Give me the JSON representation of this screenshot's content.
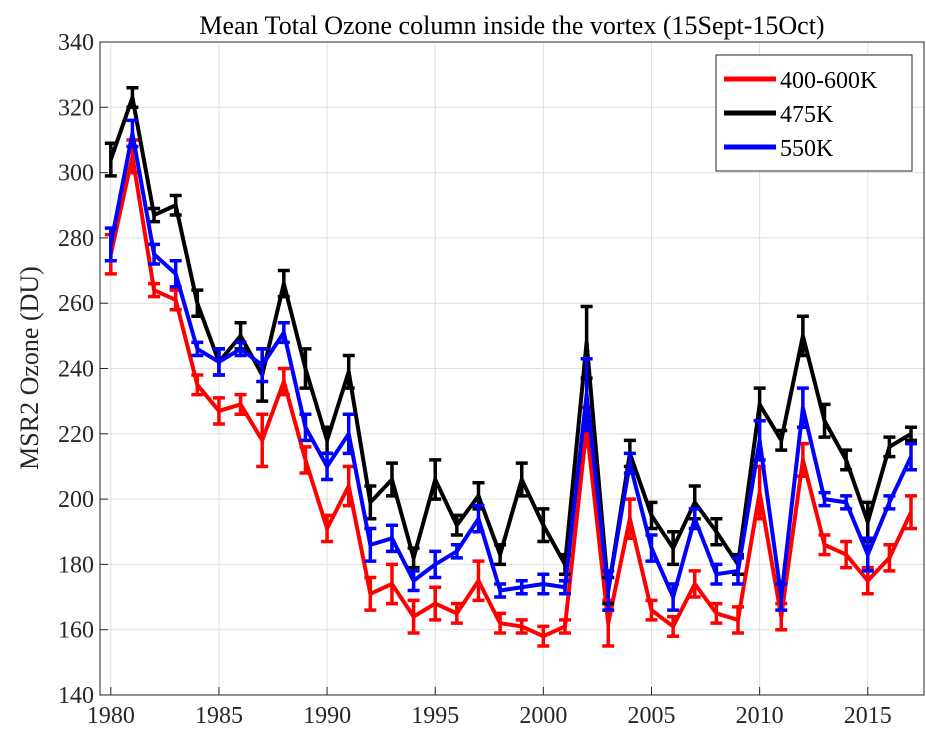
{
  "chart_data": {
    "type": "line_errorbar",
    "title": "Mean Total Ozone column inside the vortex (15Sept-15Oct)",
    "y_label": "MSR2 Ozone (DU)",
    "x": [
      1980,
      1981,
      1982,
      1983,
      1984,
      1985,
      1986,
      1987,
      1988,
      1989,
      1990,
      1991,
      1992,
      1993,
      1994,
      1995,
      1996,
      1997,
      1998,
      1999,
      2000,
      2001,
      2002,
      2003,
      2004,
      2005,
      2006,
      2007,
      2008,
      2009,
      2010,
      2011,
      2012,
      2013,
      2014,
      2015,
      2016,
      2017
    ],
    "series": [
      {
        "name": "400-600K",
        "color": "#ff0000",
        "values": [
          275,
          305,
          264,
          261,
          235,
          227,
          229,
          218,
          236,
          212,
          191,
          204,
          171,
          174,
          164,
          168,
          165,
          175,
          162,
          161,
          158,
          161,
          222,
          162,
          194,
          166,
          161,
          174,
          165,
          163,
          202,
          164,
          212,
          186,
          183,
          175,
          182,
          196
        ],
        "errors": [
          6,
          5,
          2,
          3,
          3,
          4,
          3,
          8,
          4,
          4,
          4,
          6,
          5,
          6,
          5,
          5,
          3,
          6,
          3,
          2,
          3,
          2,
          6,
          7,
          6,
          3,
          3,
          4,
          3,
          4,
          8,
          4,
          5,
          3,
          4,
          4,
          4,
          5
        ]
      },
      {
        "name": "475K",
        "color": "#000000",
        "values": [
          304,
          323,
          287,
          290,
          260,
          242,
          250,
          238,
          266,
          240,
          218,
          239,
          199,
          206,
          182,
          206,
          192,
          201,
          183,
          206,
          192,
          180,
          248,
          172,
          214,
          195,
          185,
          199,
          190,
          180,
          229,
          218,
          250,
          224,
          212,
          193,
          216,
          220
        ],
        "errors": [
          5,
          3,
          2,
          3,
          4,
          4,
          4,
          8,
          4,
          6,
          4,
          5,
          5,
          5,
          3,
          6,
          3,
          4,
          3,
          5,
          5,
          3,
          11,
          4,
          4,
          4,
          5,
          5,
          4,
          3,
          5,
          3,
          6,
          5,
          3,
          6,
          3,
          2
        ]
      },
      {
        "name": "550K",
        "color": "#0000ff",
        "values": [
          278,
          312,
          275,
          269,
          246,
          242,
          246,
          241,
          251,
          222,
          210,
          220,
          186,
          188,
          175,
          180,
          184,
          194,
          172,
          173,
          174,
          173,
          232,
          172,
          211,
          185,
          170,
          194,
          177,
          178,
          218,
          170,
          228,
          200,
          199,
          183,
          199,
          213
        ],
        "errors": [
          5,
          4,
          3,
          4,
          2,
          4,
          2,
          5,
          3,
          4,
          4,
          6,
          5,
          4,
          3,
          4,
          2,
          4,
          2,
          2,
          3,
          2,
          11,
          6,
          3,
          4,
          4,
          3,
          3,
          4,
          6,
          4,
          6,
          2,
          2,
          5,
          2,
          4
        ]
      }
    ],
    "xlim": [
      1979.5,
      2017.6
    ],
    "xticks": [
      1980,
      1985,
      1990,
      1995,
      2000,
      2005,
      2010,
      2015
    ],
    "ylim": [
      140,
      340
    ],
    "yticks": [
      140,
      160,
      180,
      200,
      220,
      240,
      260,
      280,
      300,
      320,
      340
    ],
    "grid": true,
    "legend": "top-right"
  }
}
